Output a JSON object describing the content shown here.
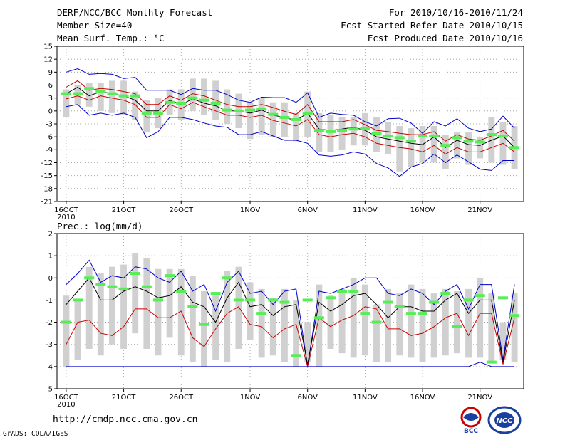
{
  "header": {
    "title": "DERF/NCC/BCC Monthly Forecast",
    "member": "Member Size=40",
    "variable": "Mean Surf. Temp.: °C",
    "period": "For 2010/10/16-2010/11/24",
    "started": "Fcst Started Refer Date 2010/10/15",
    "produced": "Fcst Produced Date 2010/10/16"
  },
  "footer": {
    "url": "http://cmdp.ncc.cma.gov.cn",
    "grads": "GrADS: COLA/IGES",
    "logo1_text": "BCC",
    "logo2_text": "NCC"
  },
  "colors": {
    "max_min": "#0000cc",
    "spread": "#cc0000",
    "mean": "#000000",
    "obs": "#55ee55",
    "box": "#d0d0d0",
    "grid": "#999999"
  },
  "chart_data": [
    {
      "type": "line",
      "title": "Mean Surf. Temp.: °C",
      "xlabel": "",
      "ylabel": "°C",
      "ylim": [
        -21,
        15
      ],
      "yticks": [
        15,
        12,
        9,
        6,
        3,
        0,
        -3,
        -6,
        -9,
        -12,
        -15,
        -18,
        -21
      ],
      "xticks": [
        {
          "day": 1,
          "label": "16OCT"
        },
        {
          "day": 6,
          "label": "21OCT"
        },
        {
          "day": 11,
          "label": "26OCT"
        },
        {
          "day": 17,
          "label": "1NOV"
        },
        {
          "day": 22,
          "label": "6NOV"
        },
        {
          "day": 27,
          "label": "11NOV"
        },
        {
          "day": 32,
          "label": "16NOV"
        },
        {
          "day": 37,
          "label": "21NOV"
        }
      ],
      "year_label": "2010",
      "x": [
        1,
        2,
        3,
        4,
        5,
        6,
        7,
        8,
        9,
        10,
        11,
        12,
        13,
        14,
        15,
        16,
        17,
        18,
        19,
        20,
        21,
        22,
        23,
        24,
        25,
        26,
        27,
        28,
        29,
        30,
        31,
        32,
        33,
        34,
        35,
        36,
        37,
        38,
        39,
        40
      ],
      "series": [
        {
          "name": "max",
          "values": [
            9,
            9.8,
            8.5,
            8.7,
            8.5,
            7.5,
            7.8,
            4.8,
            4.8,
            4.8,
            3.8,
            5.2,
            4.8,
            4.8,
            3.8,
            2.5,
            2,
            3.2,
            3.1,
            3.1,
            2,
            4.2,
            -1.5,
            -0.5,
            -0.8,
            -1,
            -2.5,
            -3.5,
            -1.8,
            -1.7,
            -2.8,
            -5.2,
            -2.5,
            -3.5,
            -1.8,
            -4,
            -4.8,
            -4.2,
            -1.2,
            -4
          ]
        },
        {
          "name": "spread_high",
          "values": [
            5.5,
            7,
            4.8,
            5.2,
            5,
            4.5,
            4,
            1.5,
            1.5,
            3.5,
            2.5,
            4,
            3.5,
            2.5,
            1.5,
            1,
            1,
            1.5,
            0.8,
            -0.1,
            -0.8,
            1.5,
            -2.5,
            -2.5,
            -2.5,
            -2,
            -3.2,
            -4.5,
            -4.8,
            -5.2,
            -5.5,
            -5.5,
            -4.8,
            -7,
            -5.5,
            -6.5,
            -6.8,
            -5.8,
            -4.5,
            -7
          ]
        },
        {
          "name": "mean",
          "values": [
            4,
            5.5,
            3.5,
            4.5,
            4,
            3.5,
            2.5,
            0,
            0,
            2.5,
            1.5,
            2.8,
            1.8,
            1.2,
            0,
            0,
            -0.5,
            0.2,
            -1,
            -1.5,
            -2.2,
            -0.5,
            -4.2,
            -4.5,
            -4.2,
            -3.8,
            -4.5,
            -6,
            -6.5,
            -7,
            -7.5,
            -7.8,
            -6,
            -8.5,
            -6.8,
            -7.8,
            -8,
            -6.8,
            -5.8,
            -8.5
          ]
        },
        {
          "name": "spread_low",
          "values": [
            2.8,
            3.5,
            2.5,
            3.5,
            3,
            2.5,
            1.5,
            -1.5,
            -1.5,
            1.5,
            0.5,
            2,
            1,
            0,
            -1,
            -1,
            -1.5,
            -1,
            -2.2,
            -2.8,
            -3.5,
            -2,
            -5.5,
            -6,
            -5.5,
            -5.2,
            -6,
            -7.5,
            -8,
            -8.5,
            -8.8,
            -9.5,
            -8,
            -10,
            -8.5,
            -9.5,
            -9.5,
            -8.5,
            -7.5,
            -9.5
          ]
        },
        {
          "name": "min",
          "values": [
            1,
            1.5,
            -1,
            -0.5,
            -1,
            -0.5,
            -1.5,
            -6.2,
            -4.8,
            -1.5,
            -1.5,
            -2,
            -2.8,
            -3.5,
            -3.8,
            -5.5,
            -5.5,
            -4.8,
            -5.8,
            -6.8,
            -6.8,
            -7.5,
            -10.2,
            -10.5,
            -10.2,
            -9.5,
            -10,
            -12.2,
            -13.2,
            -15.2,
            -13,
            -12.2,
            -10,
            -12,
            -10.2,
            -11.8,
            -13.5,
            -13.8,
            -11.5,
            -11.5
          ]
        },
        {
          "name": "observed",
          "values": [
            4,
            4,
            5.2,
            4.5,
            4,
            3.5,
            3.5,
            -0.5,
            -0.5,
            2,
            1.8,
            3,
            2.5,
            1.8,
            0.2,
            0,
            0.2,
            0.5,
            -0.8,
            -1.5,
            -2,
            -0.5,
            -4.5,
            -4.8,
            -4.5,
            -4.2,
            -4,
            -5.2,
            -5.8,
            -6.2,
            -7,
            -5.8,
            -5.8,
            -8,
            -6.2,
            -7,
            -7.2,
            -5.5,
            -5.8,
            -8.5
          ]
        }
      ],
      "boxes": [
        [
          5,
          -1.5
        ],
        [
          6,
          1.5
        ],
        [
          6.5,
          1
        ],
        [
          6.5,
          0
        ],
        [
          7,
          -0.5
        ],
        [
          7,
          -1
        ],
        [
          4.5,
          -2
        ],
        [
          2.5,
          -5
        ],
        [
          3,
          -4
        ],
        [
          5,
          -1
        ],
        [
          5,
          -2
        ],
        [
          7.5,
          0
        ],
        [
          7.5,
          -1
        ],
        [
          7,
          -2
        ],
        [
          5,
          -3
        ],
        [
          4,
          -4
        ],
        [
          2,
          -6.5
        ],
        [
          3,
          -5.5
        ],
        [
          2,
          -6
        ],
        [
          2,
          -6
        ],
        [
          -0.5,
          -7
        ],
        [
          4.5,
          -6
        ],
        [
          -0.5,
          -9.5
        ],
        [
          -1,
          -9.5
        ],
        [
          -1.5,
          -9
        ],
        [
          -1.5,
          -8
        ],
        [
          -0.5,
          -8
        ],
        [
          -1.5,
          -9.5
        ],
        [
          -2.5,
          -10
        ],
        [
          -3.5,
          -14
        ],
        [
          -4,
          -13
        ],
        [
          -3.5,
          -12
        ],
        [
          -3.5,
          -12
        ],
        [
          -5.5,
          -13.5
        ],
        [
          -5,
          -11
        ],
        [
          -5,
          -12.5
        ],
        [
          -6,
          -11
        ],
        [
          -1.5,
          -12
        ],
        [
          -2.5,
          -12.5
        ],
        [
          -3.5,
          -13.5
        ]
      ]
    },
    {
      "type": "line",
      "title": "Prec.: log(mm/d)",
      "xlabel": "",
      "ylabel": "log(mm/d)",
      "ylim": [
        -5,
        2
      ],
      "yticks": [
        2,
        1,
        0,
        -1,
        -2,
        -3,
        -4,
        -5
      ],
      "xticks": [
        {
          "day": 1,
          "label": "16OCT"
        },
        {
          "day": 6,
          "label": "21OCT"
        },
        {
          "day": 11,
          "label": "26OCT"
        },
        {
          "day": 17,
          "label": "1NOV"
        },
        {
          "day": 22,
          "label": "6NOV"
        },
        {
          "day": 27,
          "label": "11NOV"
        },
        {
          "day": 32,
          "label": "16NOV"
        },
        {
          "day": 37,
          "label": "21NOV"
        }
      ],
      "year_label": "2010",
      "x": [
        1,
        2,
        3,
        4,
        5,
        6,
        7,
        8,
        9,
        10,
        11,
        12,
        13,
        14,
        15,
        16,
        17,
        18,
        19,
        20,
        21,
        22,
        23,
        24,
        25,
        26,
        27,
        28,
        29,
        30,
        31,
        32,
        33,
        34,
        35,
        36,
        37,
        38,
        39,
        40
      ],
      "series": [
        {
          "name": "max",
          "values": [
            -0.3,
            0.2,
            0.8,
            -0.2,
            0.1,
            0,
            0.5,
            0.4,
            0,
            -0.2,
            0.3,
            -0.6,
            -0.3,
            -1.5,
            -0.2,
            0.3,
            -0.7,
            -0.6,
            -1.2,
            -0.6,
            -0.5,
            -4,
            -0.6,
            -0.7,
            -0.5,
            -0.3,
            0,
            0,
            -0.7,
            -0.8,
            -0.5,
            -0.7,
            -1.2,
            -0.6,
            -0.3,
            -1.4,
            -0.3,
            -0.3,
            -3.7,
            -0.3
          ]
        },
        {
          "name": "mean",
          "values": [
            -1.2,
            -0.6,
            0,
            -1,
            -1,
            -0.6,
            -0.4,
            -0.6,
            -0.9,
            -0.8,
            -0.4,
            -1.1,
            -1.3,
            -2,
            -0.9,
            -0.2,
            -1.3,
            -1.2,
            -1.7,
            -1.3,
            -1.2,
            -3.9,
            -1.1,
            -1.5,
            -1.2,
            -0.8,
            -0.7,
            -1.2,
            -1.8,
            -1.3,
            -1.3,
            -1.5,
            -1.5,
            -1,
            -0.7,
            -1.6,
            -1,
            -1,
            -3.8,
            -1
          ]
        },
        {
          "name": "spread",
          "values": [
            -3,
            -2,
            -1.9,
            -2.5,
            -2.6,
            -2.2,
            -1.4,
            -1.4,
            -1.8,
            -1.8,
            -1.5,
            -2.7,
            -3.1,
            -2.3,
            -1.6,
            -1.3,
            -2.1,
            -2.2,
            -2.7,
            -2.3,
            -2.1,
            -4,
            -1.8,
            -2.2,
            -1.9,
            -1.7,
            -1.3,
            -1.4,
            -2.3,
            -2.3,
            -2.6,
            -2.5,
            -2.2,
            -1.8,
            -1.6,
            -2.6,
            -1.6,
            -1.6,
            -3.9,
            -1.8
          ]
        },
        {
          "name": "min",
          "values": [
            -4,
            -4,
            -4,
            -4,
            -4,
            -4,
            -4,
            -4,
            -4,
            -4,
            -4,
            -4,
            -4,
            -4,
            -4,
            -4,
            -4,
            -4,
            -4,
            -4,
            -4,
            -4,
            -4,
            -4,
            -4,
            -4,
            -4,
            -4,
            -4,
            -4,
            -4,
            -4,
            -4,
            -4,
            -4,
            -4,
            -3.8,
            -4,
            -4,
            -4
          ]
        },
        {
          "name": "observed",
          "values": [
            -2,
            -1,
            0,
            -0.3,
            -0.4,
            -0.5,
            0.2,
            -0.4,
            -1,
            0.1,
            -0.6,
            -1.3,
            -2.1,
            -0.7,
            0,
            -1,
            -1,
            -1.6,
            -1,
            -1.1,
            -3.5,
            -1,
            -1.8,
            -0.9,
            -0.6,
            -0.6,
            -1.6,
            -2,
            -1.1,
            -1.3,
            -1.6,
            -1.6,
            -1.1,
            -0.7,
            -2.2,
            -1,
            -0.8,
            -3.8,
            -0.9,
            -1.7
          ]
        }
      ],
      "boxes": [
        [
          -0.8,
          -4
        ],
        [
          -1,
          -3.7
        ],
        [
          0.5,
          -3.2
        ],
        [
          0.2,
          -3.5
        ],
        [
          0.5,
          -3
        ],
        [
          0.6,
          -3.2
        ],
        [
          1.1,
          -2.5
        ],
        [
          0.9,
          -3.2
        ],
        [
          0.4,
          -3.5
        ],
        [
          0.4,
          -2.7
        ],
        [
          0.4,
          -3.5
        ],
        [
          0.1,
          -3.8
        ],
        [
          -0.6,
          -4
        ],
        [
          -0.8,
          -3.7
        ],
        [
          0.3,
          -3.8
        ],
        [
          0.5,
          -3.2
        ],
        [
          -0.2,
          -2.8
        ],
        [
          -0.5,
          -3.6
        ],
        [
          -0.9,
          -3.5
        ],
        [
          -0.5,
          -3.8
        ],
        [
          -1,
          -4
        ],
        [
          -2,
          -3.8
        ],
        [
          -0.3,
          -4
        ],
        [
          -0.8,
          -3.2
        ],
        [
          -0.5,
          -3.4
        ],
        [
          0,
          -3.6
        ],
        [
          -0.3,
          -3.5
        ],
        [
          -1.2,
          -3.8
        ],
        [
          -0.5,
          -3.8
        ],
        [
          -0.7,
          -3.5
        ],
        [
          -0.3,
          -3.6
        ],
        [
          -0.5,
          -3.8
        ],
        [
          -0.7,
          -3.6
        ],
        [
          -0.5,
          -3.5
        ],
        [
          -0.6,
          -3.4
        ],
        [
          -0.5,
          -3.6
        ],
        [
          0,
          -3.6
        ],
        [
          -0.7,
          -3.8
        ],
        [
          -2,
          -3.7
        ],
        [
          -0.7,
          -3.8
        ]
      ]
    }
  ]
}
